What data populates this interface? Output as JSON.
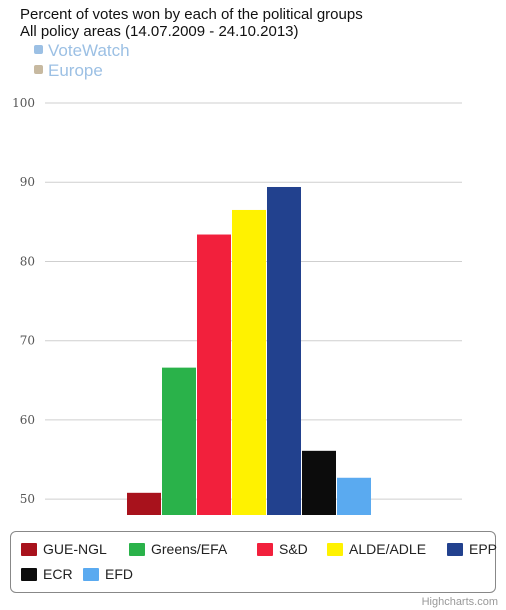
{
  "header": {
    "title": "Percent of votes won by each of the political groups",
    "subtitle": "All policy areas (14.07.2009 - 24.10.2013)"
  },
  "logo": {
    "line1": "VoteWatch",
    "line2": "Europe"
  },
  "credits": "Highcharts.com",
  "chart_data": {
    "type": "bar",
    "title": "Percent of votes won by each of the political groups",
    "subtitle": "All policy areas (14.07.2009 - 24.10.2013)",
    "xlabel": "",
    "ylabel": "",
    "ylim": [
      48,
      100
    ],
    "yticks": [
      50,
      60,
      70,
      80,
      90,
      100
    ],
    "grid": true,
    "legend_position": "bottom",
    "categories": [
      ""
    ],
    "series": [
      {
        "name": "GUE-NGL",
        "values": [
          50.8
        ],
        "color": "#a8121c"
      },
      {
        "name": "Greens/EFA",
        "values": [
          66.6
        ],
        "color": "#2ab24a"
      },
      {
        "name": "S&D",
        "values": [
          83.4
        ],
        "color": "#f2203c"
      },
      {
        "name": "ALDE/ADLE",
        "values": [
          86.5
        ],
        "color": "#fff200"
      },
      {
        "name": "EPP",
        "values": [
          89.4
        ],
        "color": "#22418e"
      },
      {
        "name": "ECR",
        "values": [
          56.1
        ],
        "color": "#0c0c0c"
      },
      {
        "name": "EFD",
        "values": [
          52.7
        ],
        "color": "#5aaaf0"
      }
    ]
  }
}
